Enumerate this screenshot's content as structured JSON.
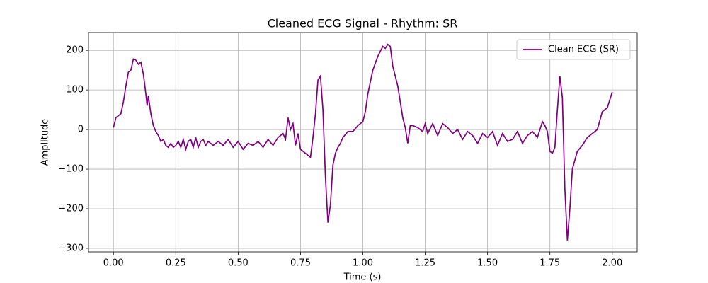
{
  "chart_data": {
    "type": "line",
    "title": "Cleaned ECG Signal - Rhythm: SR",
    "x_label": "Time (s)",
    "y_label": "Amplitude",
    "x": [
      0,
      0.01,
      0.02,
      0.03,
      0.04,
      0.05,
      0.06,
      0.07,
      0.08,
      0.09,
      0.1,
      0.11,
      0.12,
      0.13,
      0.135,
      0.14,
      0.15,
      0.16,
      0.17,
      0.18,
      0.19,
      0.2,
      0.21,
      0.22,
      0.23,
      0.24,
      0.25,
      0.26,
      0.27,
      0.28,
      0.29,
      0.3,
      0.31,
      0.32,
      0.33,
      0.34,
      0.35,
      0.36,
      0.37,
      0.38,
      0.4,
      0.42,
      0.44,
      0.46,
      0.48,
      0.5,
      0.52,
      0.54,
      0.56,
      0.58,
      0.6,
      0.62,
      0.64,
      0.66,
      0.68,
      0.69,
      0.7,
      0.71,
      0.72,
      0.73,
      0.74,
      0.75,
      0.76,
      0.77,
      0.78,
      0.79,
      0.8,
      0.81,
      0.82,
      0.83,
      0.84,
      0.85,
      0.86,
      0.87,
      0.88,
      0.89,
      0.9,
      0.91,
      0.92,
      0.94,
      0.96,
      0.98,
      1.0,
      1.01,
      1.02,
      1.04,
      1.06,
      1.08,
      1.09,
      1.1,
      1.11,
      1.12,
      1.14,
      1.16,
      1.17,
      1.18,
      1.19,
      1.2,
      1.22,
      1.24,
      1.25,
      1.26,
      1.28,
      1.3,
      1.32,
      1.34,
      1.36,
      1.38,
      1.4,
      1.42,
      1.44,
      1.46,
      1.48,
      1.5,
      1.52,
      1.54,
      1.56,
      1.58,
      1.6,
      1.62,
      1.64,
      1.66,
      1.68,
      1.7,
      1.72,
      1.73,
      1.74,
      1.75,
      1.76,
      1.77,
      1.78,
      1.79,
      1.8,
      1.81,
      1.82,
      1.83,
      1.84,
      1.86,
      1.88,
      1.9,
      1.92,
      1.94,
      1.96,
      1.98,
      2.0
    ],
    "series": [
      {
        "name": "Clean ECG (SR)",
        "color": "#800080",
        "values": [
          5,
          30,
          35,
          40,
          70,
          110,
          145,
          150,
          178,
          175,
          165,
          170,
          140,
          90,
          60,
          85,
          40,
          10,
          -5,
          -15,
          -30,
          -25,
          -40,
          -45,
          -35,
          -45,
          -40,
          -30,
          -45,
          -25,
          -50,
          -30,
          -25,
          -45,
          -20,
          -45,
          -30,
          -25,
          -40,
          -30,
          -40,
          -30,
          -40,
          -25,
          -45,
          -30,
          -50,
          -35,
          -40,
          -30,
          -45,
          -25,
          -40,
          -20,
          -10,
          -25,
          30,
          0,
          15,
          -40,
          -10,
          -50,
          -55,
          -60,
          -65,
          -70,
          -20,
          40,
          125,
          135,
          50,
          -120,
          -235,
          -190,
          -90,
          -60,
          -45,
          -35,
          -20,
          -5,
          -5,
          10,
          20,
          45,
          90,
          150,
          185,
          210,
          205,
          215,
          210,
          160,
          110,
          30,
          5,
          -35,
          10,
          10,
          5,
          -5,
          15,
          -10,
          15,
          -15,
          15,
          5,
          -10,
          0,
          -25,
          -5,
          -15,
          -35,
          -10,
          -20,
          -5,
          -40,
          -10,
          -30,
          -25,
          -5,
          -35,
          -15,
          -5,
          -20,
          20,
          10,
          -5,
          -55,
          -60,
          -45,
          50,
          135,
          80,
          -150,
          -280,
          -200,
          -100,
          -55,
          -40,
          -20,
          -10,
          0,
          45,
          55,
          95
        ]
      }
    ],
    "xlim": [
      -0.1,
      2.1
    ],
    "ylim": [
      -309,
      245
    ],
    "xticks": [
      {
        "value": 0,
        "label": "0.00"
      },
      {
        "value": 0.25,
        "label": "0.25"
      },
      {
        "value": 0.5,
        "label": "0.50"
      },
      {
        "value": 0.75,
        "label": "0.75"
      },
      {
        "value": 1,
        "label": "1.00"
      },
      {
        "value": 1.25,
        "label": "1.25"
      },
      {
        "value": 1.5,
        "label": "1.50"
      },
      {
        "value": 1.75,
        "label": "1.75"
      },
      {
        "value": 2,
        "label": "2.00"
      }
    ],
    "yticks": [
      {
        "value": -300,
        "label": "−300"
      },
      {
        "value": -200,
        "label": "−200"
      },
      {
        "value": -100,
        "label": "−100"
      },
      0,
      100,
      200
    ],
    "grid": true,
    "legend": "upper right"
  }
}
